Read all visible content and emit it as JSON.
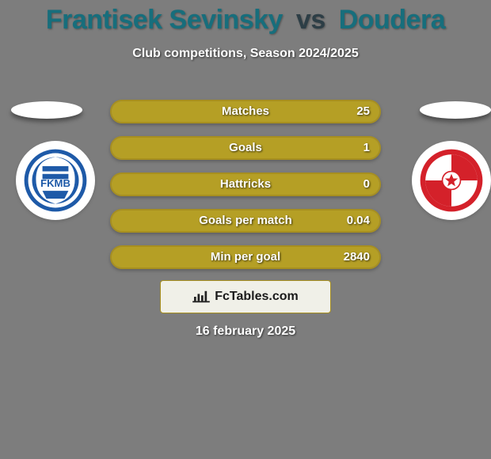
{
  "background_color": "#7d7d7d",
  "accent": {
    "olive": "#a78f1f",
    "olive_light": "#b59f25",
    "teal": "#176e7c"
  },
  "title": {
    "player1": "Frantisek Sevinsky",
    "vs": "vs",
    "player2": "Doudera",
    "player1_color": "#176e7c",
    "vs_color": "#2d3e46",
    "player2_color": "#176e7c"
  },
  "subtitle": "Club competitions, Season 2024/2025",
  "stats": [
    {
      "label": "Matches",
      "value": "25",
      "fill_pct": 100
    },
    {
      "label": "Goals",
      "value": "1",
      "fill_pct": 100
    },
    {
      "label": "Hattricks",
      "value": "0",
      "fill_pct": 100
    },
    {
      "label": "Goals per match",
      "value": "0.04",
      "fill_pct": 100
    },
    {
      "label": "Min per goal",
      "value": "2840",
      "fill_pct": 100
    }
  ],
  "credit": {
    "text": "FcTables.com",
    "bg": "#f0f0e8",
    "border": "#a78f1f"
  },
  "date": "16 february 2025",
  "crests": {
    "left": {
      "name": "FKMB",
      "primary": "#1e5aa8",
      "secondary": "#ffffff",
      "accent": "#153f78"
    },
    "right": {
      "name": "Slavia",
      "primary": "#d4212a",
      "secondary": "#ffffff",
      "accent": "#b01820"
    }
  }
}
